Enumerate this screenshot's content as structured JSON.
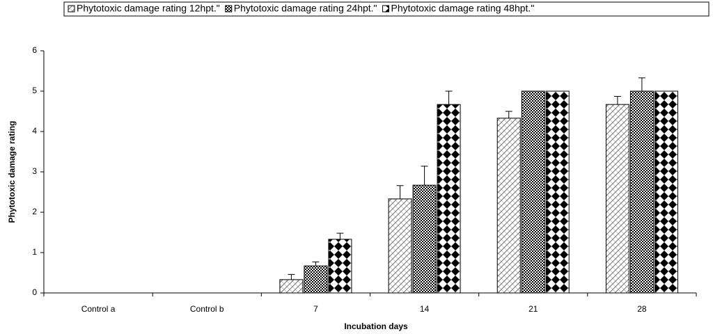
{
  "chart_data": {
    "type": "bar",
    "x_label": "Incubation days",
    "y_label": "Phytotoxic damage rating",
    "categories": [
      "Control a",
      "Control b",
      "7",
      "14",
      "21",
      "28"
    ],
    "series": [
      {
        "name": "Phytotoxic damage rating 12hpt.\"",
        "pattern": "hatch",
        "values": [
          0,
          0,
          0.33,
          2.33,
          4.33,
          4.67
        ],
        "errors": [
          0,
          0,
          0.13,
          0.33,
          0.17,
          0.2
        ]
      },
      {
        "name": "Phytotoxic damage rating 24hpt.\"",
        "pattern": "checker",
        "values": [
          0,
          0,
          0.67,
          2.67,
          5,
          5
        ],
        "errors": [
          0,
          0,
          0.1,
          0.47,
          0,
          0.33
        ]
      },
      {
        "name": "Phytotoxic damage rating 48hpt.\"",
        "pattern": "diamond",
        "values": [
          0,
          0,
          1.33,
          4.67,
          5,
          5
        ],
        "errors": [
          0,
          0,
          0.15,
          0.33,
          0,
          0
        ]
      }
    ],
    "ylim": [
      0,
      6
    ],
    "yticks": [
      0,
      1,
      2,
      3,
      4,
      5,
      6
    ],
    "grid": false,
    "legend": "top"
  }
}
